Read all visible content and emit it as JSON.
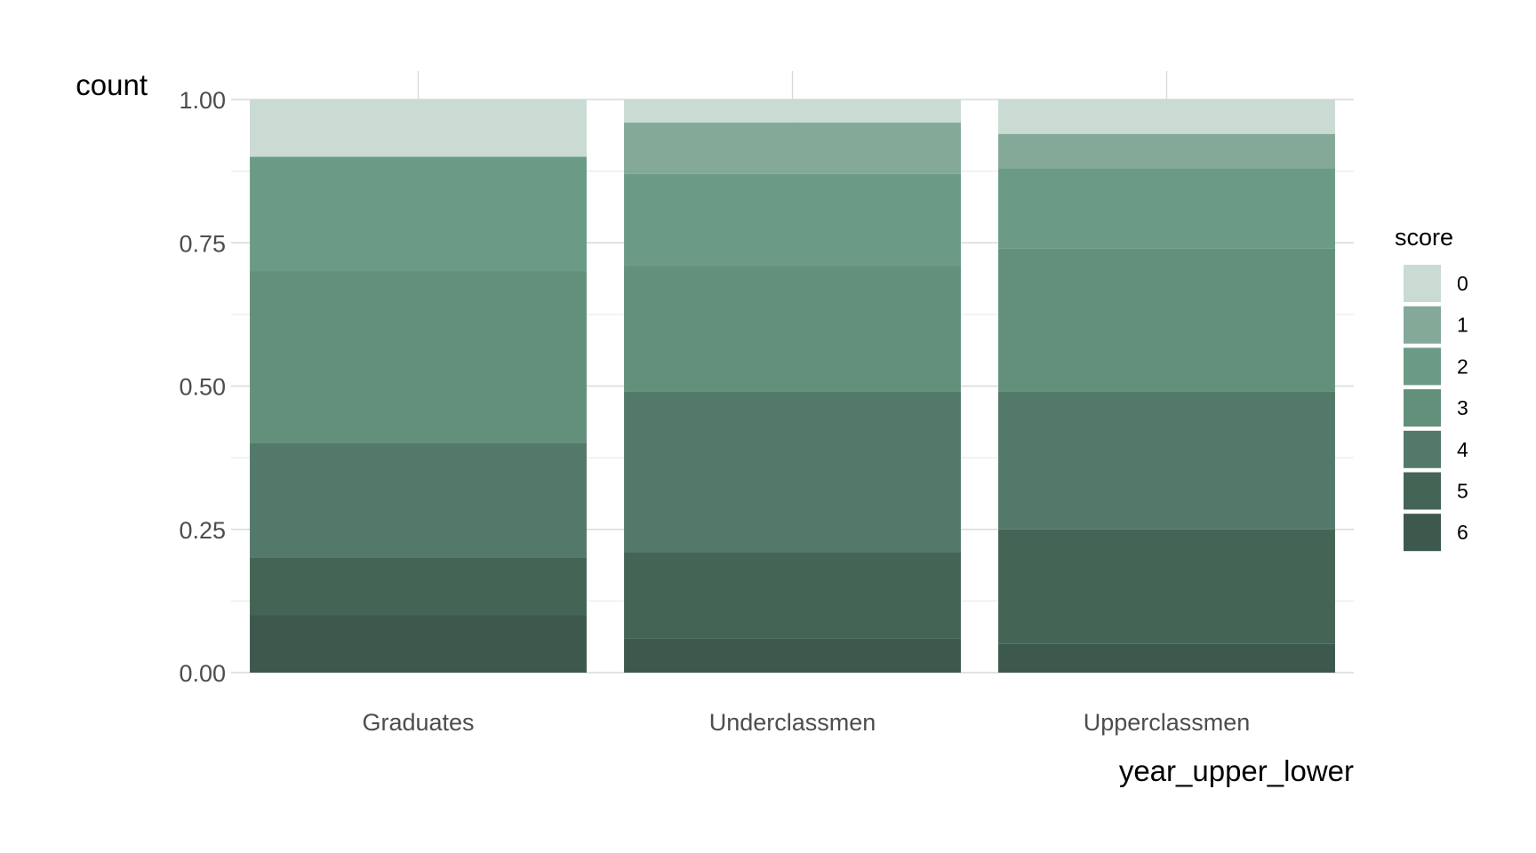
{
  "chart_data": {
    "type": "bar",
    "stacked": "fill",
    "categories": [
      "Graduates",
      "Underclassmen",
      "Upperclassmen"
    ],
    "xlabel": "year_upper_lower",
    "ylabel": "count",
    "ylim": [
      0,
      1
    ],
    "yticks": [
      "0.00",
      "0.25",
      "0.50",
      "0.75",
      "1.00"
    ],
    "legend": {
      "title": "score",
      "position": "right"
    },
    "grid": true,
    "series": [
      {
        "name": "0",
        "color": "#c9dbd3",
        "values": [
          0.1,
          0.04,
          0.06
        ]
      },
      {
        "name": "1",
        "color": "#84a999",
        "values": [
          0.0,
          0.09,
          0.06
        ]
      },
      {
        "name": "2",
        "color": "#6b9b86",
        "values": [
          0.2,
          0.16,
          0.14
        ]
      },
      {
        "name": "3",
        "color": "#62907b",
        "values": [
          0.3,
          0.22,
          0.25
        ]
      },
      {
        "name": "4",
        "color": "#53796b",
        "values": [
          0.2,
          0.28,
          0.24
        ]
      },
      {
        "name": "5",
        "color": "#446456",
        "values": [
          0.1,
          0.15,
          0.2
        ]
      },
      {
        "name": "6",
        "color": "#3d584d",
        "values": [
          0.1,
          0.06,
          0.05
        ]
      }
    ]
  }
}
